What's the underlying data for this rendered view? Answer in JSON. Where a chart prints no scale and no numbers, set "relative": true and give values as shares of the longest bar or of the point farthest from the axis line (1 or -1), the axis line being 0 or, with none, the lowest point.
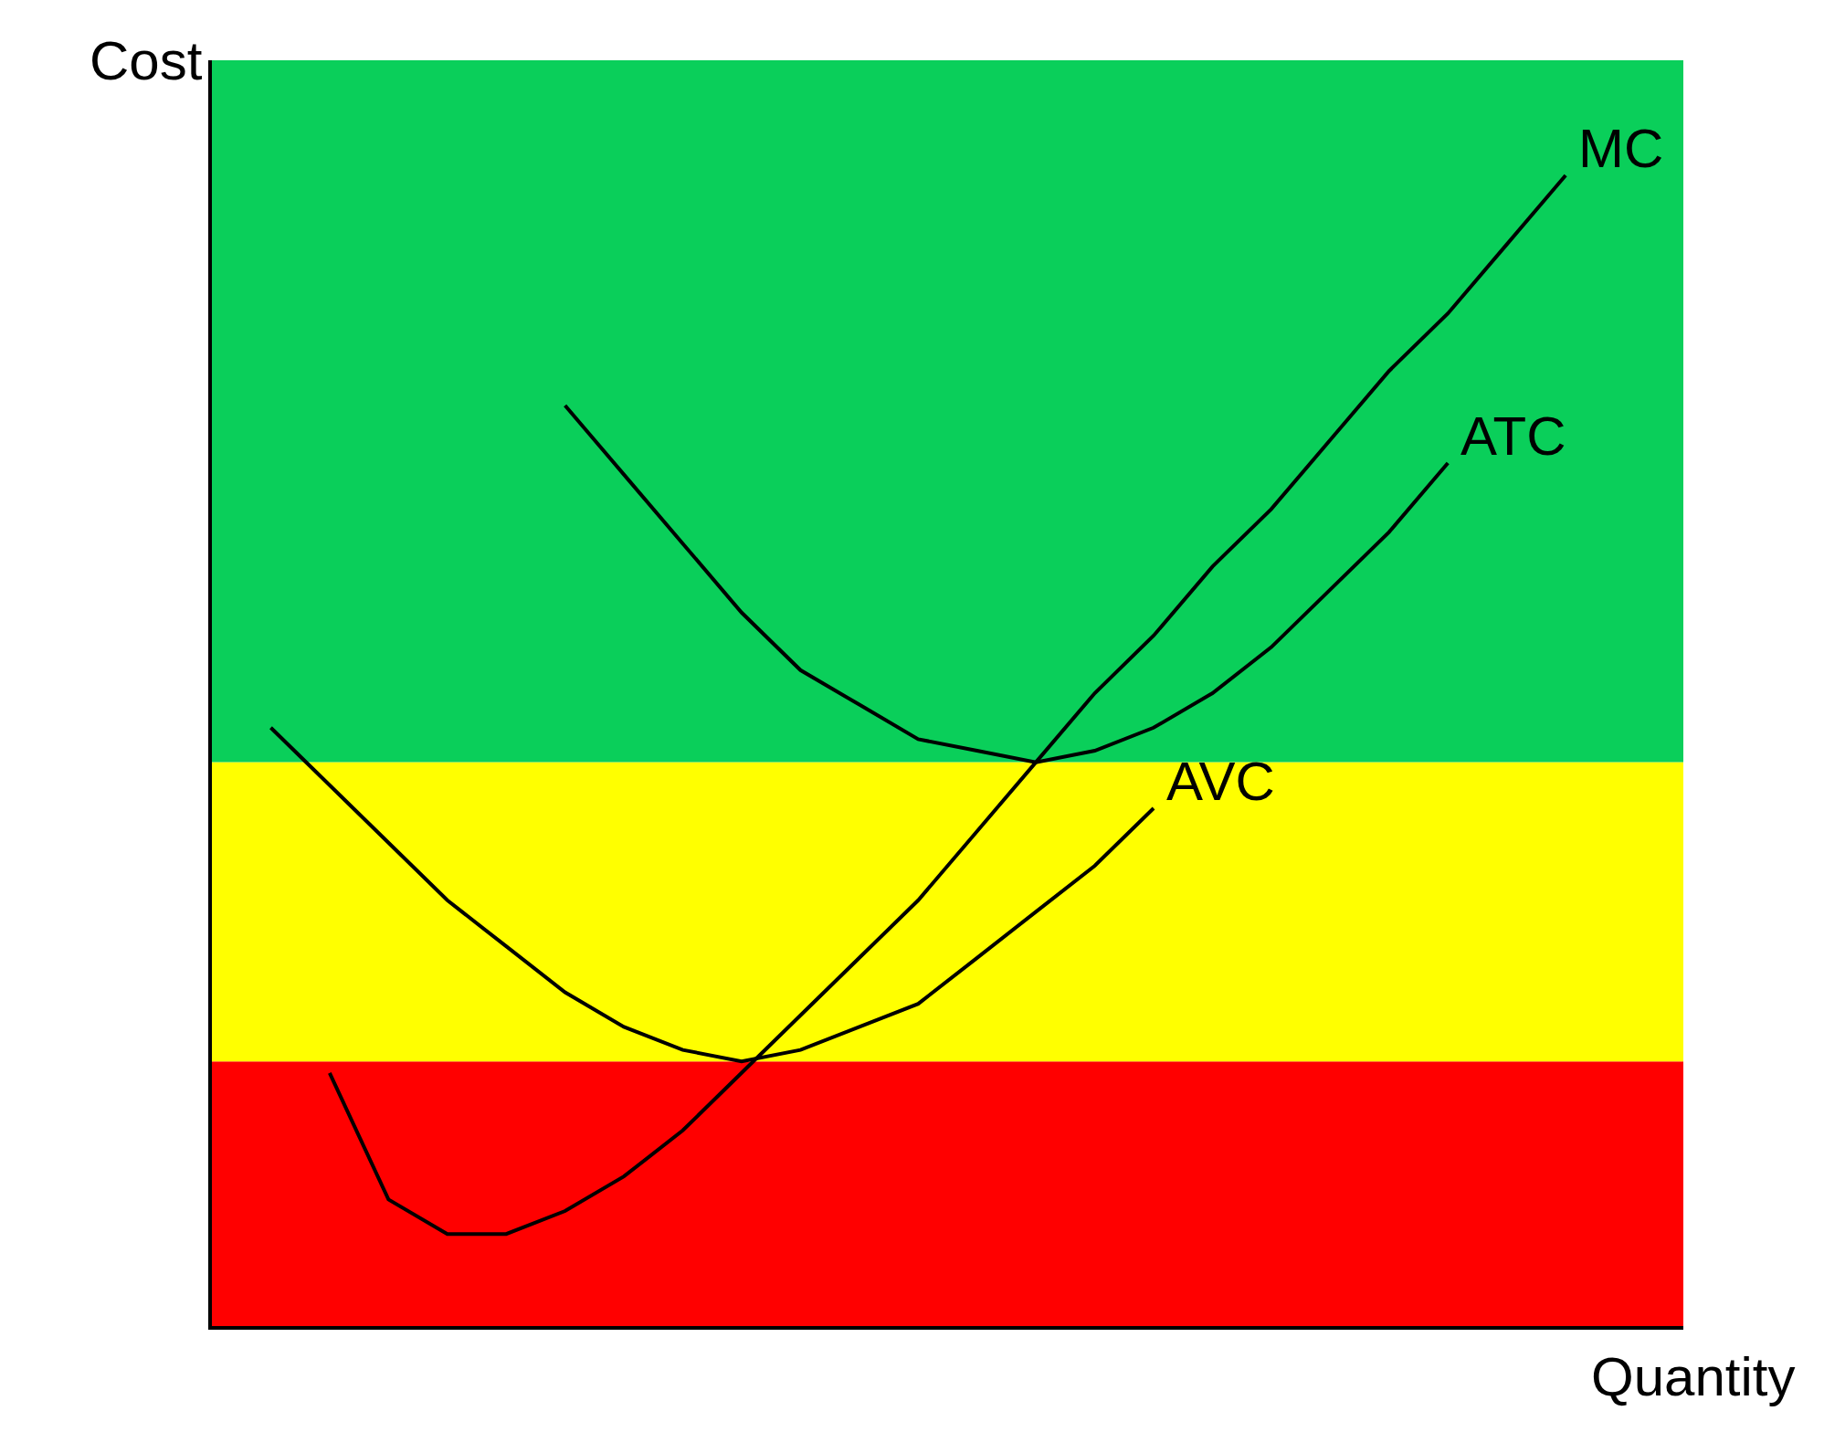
{
  "chart_data": {
    "type": "line",
    "relative": true,
    "xlabel": "Quantity",
    "ylabel": "Cost",
    "legend": false,
    "grid": false,
    "marker": "none",
    "line_style": "solid",
    "categories": [
      null,
      null,
      null,
      null,
      null,
      null,
      null,
      null,
      null,
      null,
      null,
      null,
      null,
      null,
      null,
      null,
      null,
      null,
      null,
      null,
      null,
      null,
      null,
      null,
      null,
      null
    ],
    "bands": [
      {
        "axis": "y",
        "from": 0,
        "to": 0.23,
        "color": "#ff0000"
      },
      {
        "axis": "y",
        "from": 0.23,
        "to": 0.49,
        "color": "#ffff00"
      },
      {
        "axis": "y",
        "from": 0.49,
        "to": 1.1,
        "color": "#0acf5a"
      }
    ],
    "series": [
      {
        "name": "MC",
        "color": "#000000",
        "values": [
          null,
          null,
          0.22,
          0.11,
          0.08,
          0.08,
          0.1,
          0.13,
          0.17,
          0.22,
          0.27,
          0.32,
          0.37,
          0.43,
          0.49,
          0.55,
          0.6,
          0.66,
          0.71,
          0.77,
          0.83,
          0.88,
          0.94,
          1.0,
          null,
          null
        ]
      },
      {
        "name": "ATC",
        "color": "#000000",
        "values": [
          null,
          null,
          null,
          null,
          null,
          null,
          0.8,
          0.74,
          0.68,
          0.62,
          0.57,
          0.54,
          0.51,
          0.5,
          0.49,
          0.5,
          0.52,
          0.55,
          0.59,
          0.64,
          0.69,
          0.75,
          null,
          null,
          null,
          null
        ]
      },
      {
        "name": "AVC",
        "color": "#000000",
        "values": [
          null,
          0.52,
          0.47,
          0.42,
          0.37,
          0.33,
          0.29,
          0.26,
          0.24,
          0.23,
          0.24,
          0.26,
          0.28,
          0.32,
          0.36,
          0.4,
          0.45,
          null,
          null,
          null,
          null,
          null,
          null,
          null,
          null,
          null
        ]
      }
    ]
  }
}
